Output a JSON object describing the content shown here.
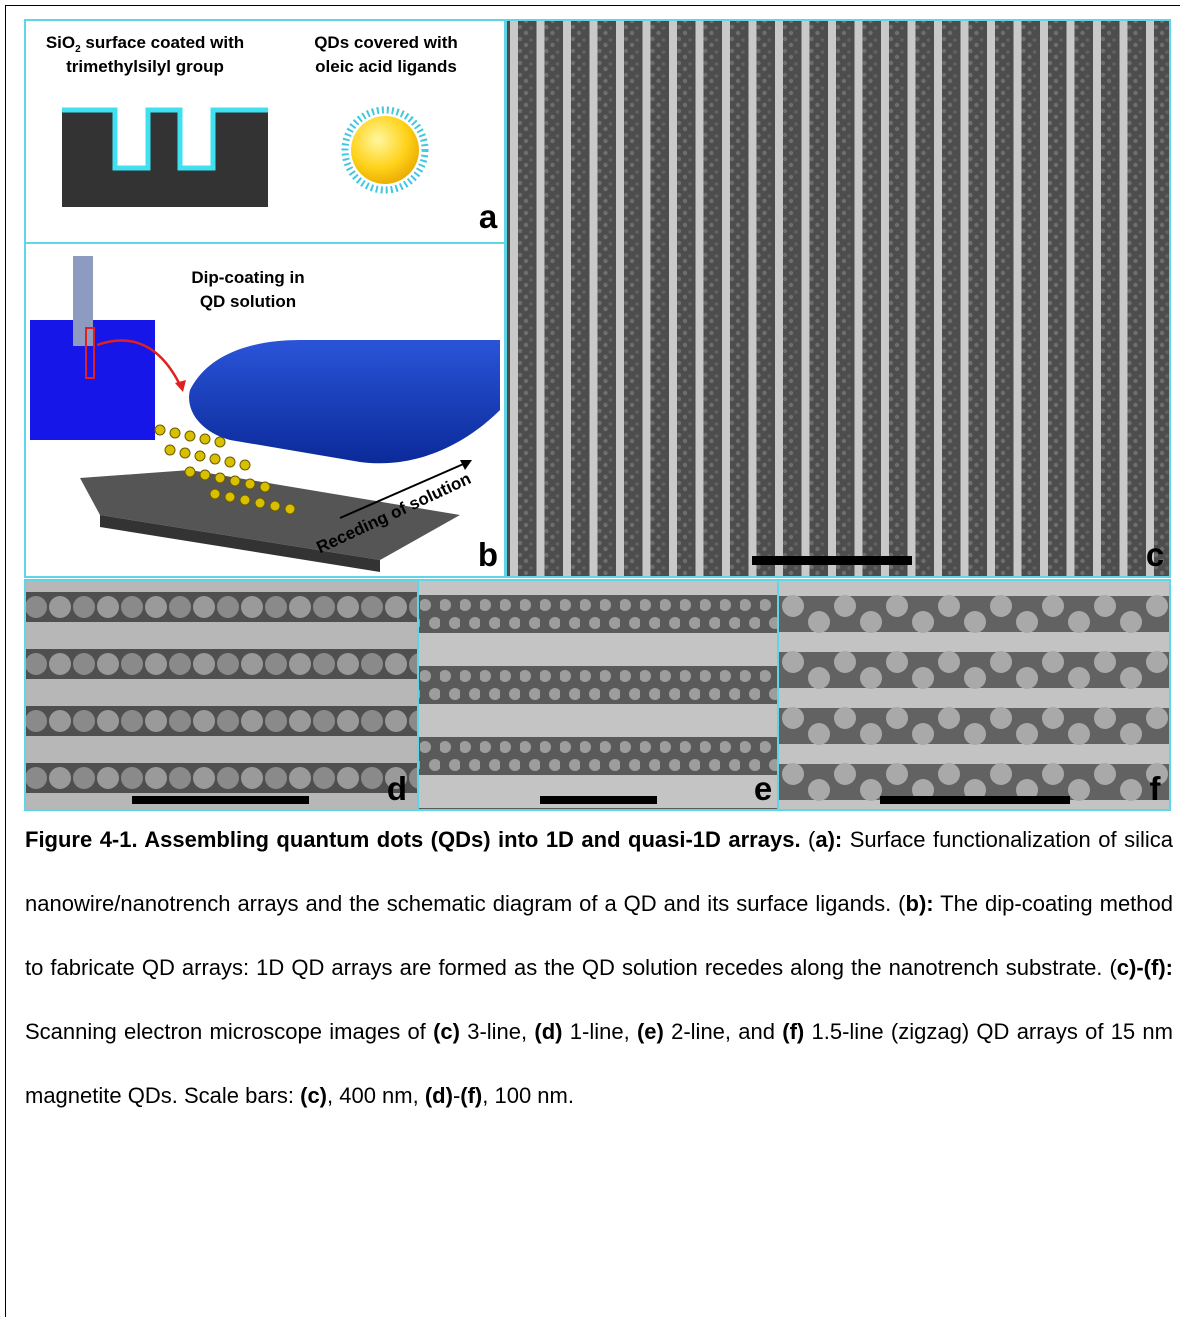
{
  "panels": {
    "a": {
      "label": "a",
      "left_text": {
        "line1_prefix": "SiO",
        "line1_subscript": "2",
        "line1_suffix": " surface coated with",
        "line2": "trimethylsilyl group"
      },
      "right_text": {
        "line1": "QDs covered with",
        "line2": "oleic acid ligands"
      }
    },
    "b": {
      "label": "b",
      "text": [
        "Dip-coating in",
        "QD solution"
      ],
      "arrow_label": "Receding of solution"
    },
    "c": {
      "label": "c"
    },
    "d": {
      "label": "d"
    },
    "e": {
      "label": "e"
    },
    "f": {
      "label": "f"
    }
  },
  "caption": {
    "runs": [
      {
        "text": "Figure 4-1. Assembling quantum dots (QDs) into 1D and quasi-1D arrays.",
        "bold": true
      },
      {
        "text": " (",
        "bold": false
      },
      {
        "text": "a):",
        "bold": true
      },
      {
        "text": " Surface functionalization of silica nanowire/nanotrench arrays and the schematic diagram of a QD and its surface ligands. (",
        "bold": false
      },
      {
        "text": "b):",
        "bold": true
      },
      {
        "text": " The dip-coating method to fabricate QD arrays: 1D QD arrays are formed as the QD solution recedes along the nanotrench substrate. (",
        "bold": false
      },
      {
        "text": "c)-(f):",
        "bold": true
      },
      {
        "text": " Scanning electron microscope images of ",
        "bold": false
      },
      {
        "text": "(c)",
        "bold": true
      },
      {
        "text": " 3-line, ",
        "bold": false
      },
      {
        "text": "(d)",
        "bold": true
      },
      {
        "text": " 1-line, ",
        "bold": false
      },
      {
        "text": "(e)",
        "bold": true
      },
      {
        "text": " 2-line, and ",
        "bold": false
      },
      {
        "text": "(f)",
        "bold": true
      },
      {
        "text": " 1.5-line (zigzag) QD arrays of 15 nm magnetite QDs. Scale bars: ",
        "bold": false
      },
      {
        "text": "(c)",
        "bold": true
      },
      {
        "text": ", 400 nm, ",
        "bold": false
      },
      {
        "text": "(d)",
        "bold": true
      },
      {
        "text": "-",
        "bold": false
      },
      {
        "text": "(f)",
        "bold": true
      },
      {
        "text": ", 100 nm.",
        "bold": false
      }
    ]
  }
}
